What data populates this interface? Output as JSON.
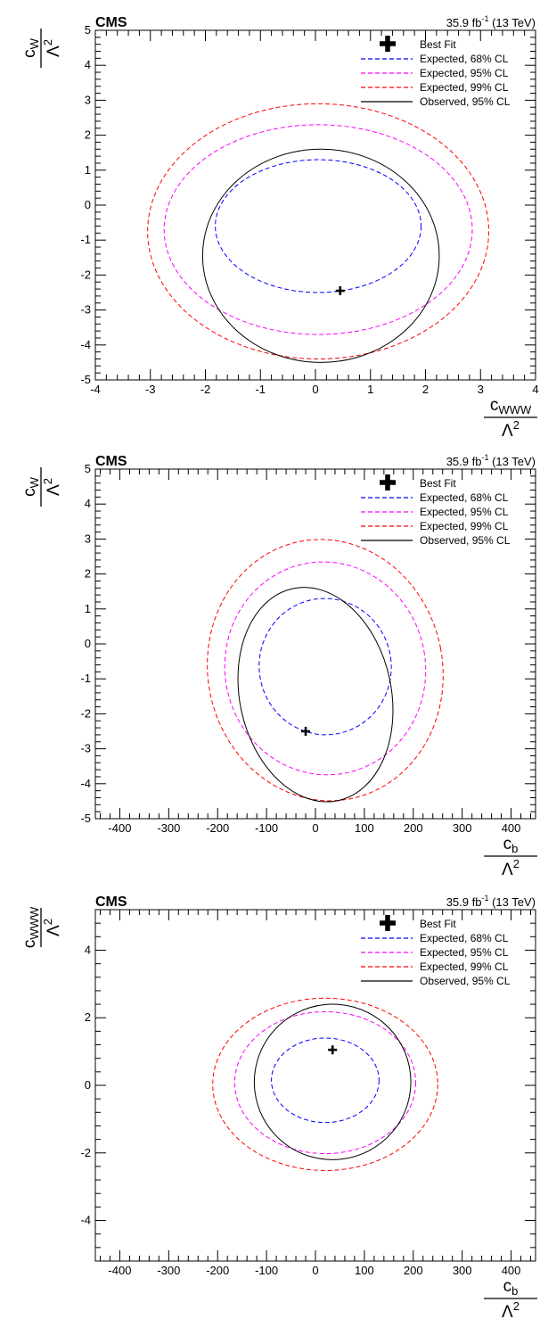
{
  "chart_data": [
    {
      "type": "contour",
      "experiment": "CMS",
      "lumi_text": "35.9 fb",
      "lumi_sup": "-1",
      "energy_text": " (13 TeV)",
      "xlabel_num": "c",
      "xlabel_sub": "WWW",
      "ylabel_num": "c",
      "ylabel_sub": "W",
      "label_den": "Λ",
      "label_den_sup": "2",
      "xlim": [
        -4,
        4
      ],
      "ylim": [
        -5,
        5
      ],
      "xticks": [
        -4,
        -3,
        -2,
        -1,
        0,
        1,
        2,
        3,
        4
      ],
      "yticks": [
        -5,
        -4,
        -3,
        -2,
        -1,
        0,
        1,
        2,
        3,
        4,
        5
      ],
      "best_fit": {
        "x": 0.45,
        "y": -2.45
      },
      "legend_position": "top-right",
      "series": [
        {
          "name": "Best Fit",
          "style": "marker",
          "color": "#000000"
        },
        {
          "name": "Expected, 68% CL",
          "style": "dashed",
          "color": "#0000ff",
          "ellipse": {
            "cx": 0.05,
            "cy": -0.6,
            "rx": 1.87,
            "ry": 1.9
          }
        },
        {
          "name": "Expected, 95% CL",
          "style": "dashed",
          "color": "#ff00ff",
          "ellipse": {
            "cx": 0.05,
            "cy": -0.7,
            "rx": 2.8,
            "ry": 3.0
          }
        },
        {
          "name": "Expected, 99% CL",
          "style": "dashed",
          "color": "#ff0000",
          "ellipse": {
            "cx": 0.05,
            "cy": -0.75,
            "rx": 3.1,
            "ry": 3.65
          }
        },
        {
          "name": "Observed, 95% CL",
          "style": "solid",
          "color": "#000000",
          "ellipse": {
            "cx": 0.1,
            "cy": -1.45,
            "rx": 2.15,
            "ry": 3.05
          }
        }
      ]
    },
    {
      "type": "contour",
      "experiment": "CMS",
      "lumi_text": "35.9 fb",
      "lumi_sup": "-1",
      "energy_text": " (13 TeV)",
      "xlabel_num": "c",
      "xlabel_sub": "b",
      "ylabel_num": "c",
      "ylabel_sub": "W",
      "label_den": "Λ",
      "label_den_sup": "2",
      "xlim": [
        -450,
        450
      ],
      "ylim": [
        -5,
        5
      ],
      "xticks": [
        -400,
        -300,
        -200,
        -100,
        0,
        100,
        200,
        300,
        400
      ],
      "yticks": [
        -5,
        -4,
        -3,
        -2,
        -1,
        0,
        1,
        2,
        3,
        4,
        5
      ],
      "best_fit": {
        "x": -20,
        "y": -2.5
      },
      "legend_position": "top-right",
      "series": [
        {
          "name": "Best Fit",
          "style": "marker",
          "color": "#000000"
        },
        {
          "name": "Expected, 68% CL",
          "style": "dashed",
          "color": "#0000ff",
          "ellipse": {
            "cx": 20,
            "cy": -0.65,
            "rx": 135,
            "ry": 1.95,
            "tilt": -8
          }
        },
        {
          "name": "Expected, 95% CL",
          "style": "dashed",
          "color": "#ff00ff",
          "ellipse": {
            "cx": 20,
            "cy": -0.7,
            "rx": 205,
            "ry": 3.05,
            "tilt": -10
          }
        },
        {
          "name": "Expected, 99% CL",
          "style": "dashed",
          "color": "#ff0000",
          "ellipse": {
            "cx": 20,
            "cy": -0.75,
            "rx": 240,
            "ry": 3.75,
            "tilt": -11
          }
        },
        {
          "name": "Observed, 95% CL",
          "style": "solid",
          "color": "#000000",
          "ellipse": {
            "cx": 0,
            "cy": -1.45,
            "rx": 155,
            "ry": 3.1,
            "tilt": -12
          }
        }
      ]
    },
    {
      "type": "contour",
      "experiment": "CMS",
      "lumi_text": "35.9 fb",
      "lumi_sup": "-1",
      "energy_text": " (13 TeV)",
      "xlabel_num": "c",
      "xlabel_sub": "b",
      "ylabel_num": "c",
      "ylabel_sub": "WWW",
      "label_den": "Λ",
      "label_den_sup": "2",
      "xlim": [
        -450,
        450
      ],
      "ylim": [
        -5.2,
        5.2
      ],
      "xticks": [
        -400,
        -300,
        -200,
        -100,
        0,
        100,
        200,
        300,
        400
      ],
      "yticks": [
        -4,
        -2,
        0,
        2,
        4
      ],
      "best_fit": {
        "x": 35,
        "y": 1.05
      },
      "legend_position": "top-right",
      "series": [
        {
          "name": "Best Fit",
          "style": "marker",
          "color": "#000000"
        },
        {
          "name": "Expected, 68% CL",
          "style": "dashed",
          "color": "#0000ff",
          "ellipse": {
            "cx": 20,
            "cy": 0.15,
            "rx": 110,
            "ry": 1.25
          }
        },
        {
          "name": "Expected, 95% CL",
          "style": "dashed",
          "color": "#ff00ff",
          "ellipse": {
            "cx": 20,
            "cy": 0.08,
            "rx": 185,
            "ry": 2.1
          }
        },
        {
          "name": "Expected, 99% CL",
          "style": "dashed",
          "color": "#ff0000",
          "ellipse": {
            "cx": 20,
            "cy": 0.03,
            "rx": 230,
            "ry": 2.55
          }
        },
        {
          "name": "Observed, 95% CL",
          "style": "solid",
          "color": "#000000",
          "ellipse": {
            "cx": 35,
            "cy": 0.1,
            "rx": 160,
            "ry": 2.3,
            "tilt": -6
          }
        }
      ]
    }
  ]
}
